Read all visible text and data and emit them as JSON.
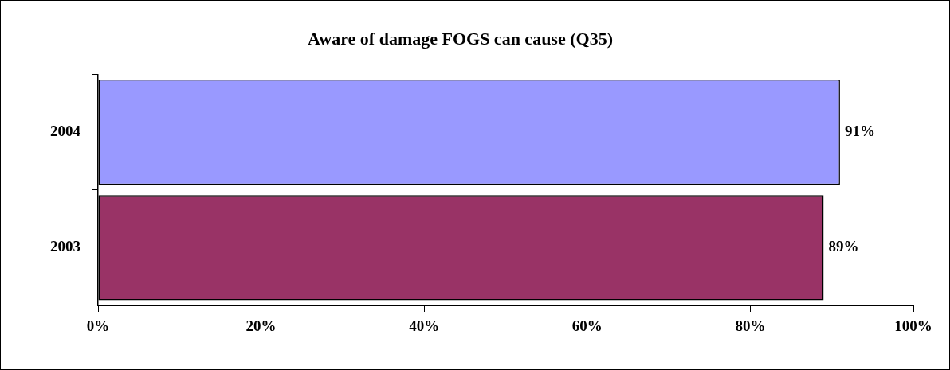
{
  "chart_data": {
    "type": "bar",
    "orientation": "horizontal",
    "title": "Aware of damage FOGS can cause (Q35)",
    "categories": [
      "2004",
      "2003"
    ],
    "values": [
      91,
      89
    ],
    "colors": [
      "#9999ff",
      "#993366"
    ],
    "value_labels": [
      "91%",
      "89%"
    ],
    "xlim": [
      0,
      100
    ],
    "xticks": [
      {
        "value": 0,
        "label": "0%"
      },
      {
        "value": 20,
        "label": "20%"
      },
      {
        "value": 40,
        "label": "40%"
      },
      {
        "value": 60,
        "label": "60%"
      },
      {
        "value": 80,
        "label": "80%"
      },
      {
        "value": 100,
        "label": "100%"
      }
    ],
    "grid": false,
    "legend": false
  }
}
